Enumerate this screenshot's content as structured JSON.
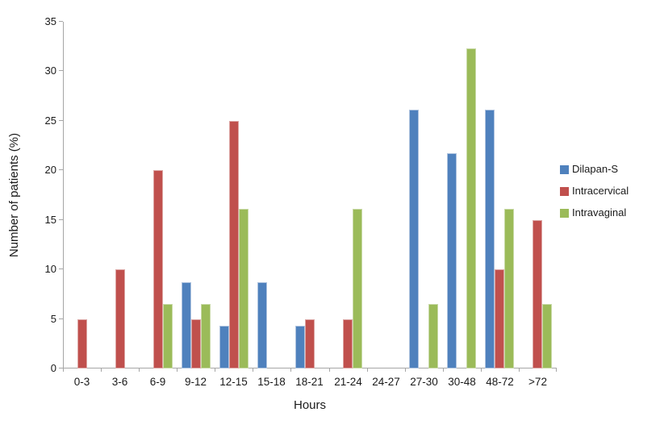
{
  "chart_data": {
    "type": "bar",
    "title": "",
    "xlabel": "Hours",
    "ylabel": "Number of patients (%)",
    "ylim": [
      0,
      35
    ],
    "ytick_step": 5,
    "grid": false,
    "legend_position": "right",
    "axis_line_color": "#a6a6a6",
    "categories": [
      "0-3",
      "3-6",
      "6-9",
      "9-12",
      "12-15",
      "15-18",
      "18-21",
      "21-24",
      "24-27",
      "27-30",
      "30-48",
      "48-72",
      ">72"
    ],
    "series": [
      {
        "name": "Dilapan-S",
        "color": "#4f81bd",
        "border_color": "#aec3df",
        "values": [
          0,
          0,
          0,
          8.7,
          4.3,
          8.7,
          4.3,
          0,
          0,
          26.1,
          21.7,
          26.1,
          0
        ]
      },
      {
        "name": "Intracervical",
        "color": "#c0504d",
        "border_color": "#dca5a3",
        "values": [
          5,
          10,
          20,
          5,
          25,
          0,
          5,
          5,
          0,
          0,
          0,
          10,
          15
        ]
      },
      {
        "name": "Intravaginal",
        "color": "#9bbb59",
        "border_color": "#c8d9a6",
        "values": [
          0,
          0,
          6.5,
          6.5,
          16.1,
          0,
          0,
          16.1,
          0,
          6.5,
          32.3,
          16.1,
          6.5
        ]
      }
    ]
  }
}
